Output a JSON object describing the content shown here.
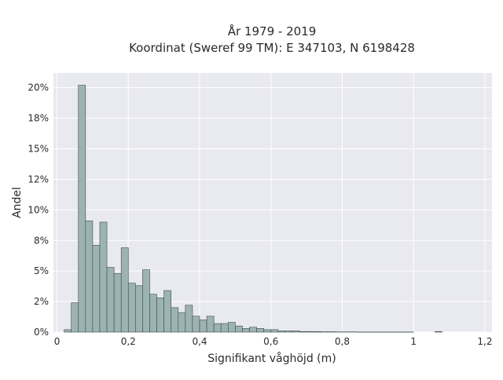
{
  "chart_data": {
    "type": "bar",
    "title_line1": "År 1979 - 2019",
    "title_line2": "Koordinat (Sweref 99 TM): E 347103, N 6198428",
    "xlabel": "Signifikant våghöjd (m)",
    "ylabel": "Andel",
    "xlim": [
      -0.01,
      1.22
    ],
    "ylim": [
      0,
      21.2
    ],
    "x_ticks": [
      {
        "value": 0,
        "label": "0"
      },
      {
        "value": 0.2,
        "label": "0,2"
      },
      {
        "value": 0.4,
        "label": "0,4"
      },
      {
        "value": 0.6,
        "label": "0,6"
      },
      {
        "value": 0.8,
        "label": "0,8"
      },
      {
        "value": 1.0,
        "label": "1"
      },
      {
        "value": 1.2,
        "label": "1,2"
      }
    ],
    "y_ticks": [
      {
        "value": 0,
        "label": "0%"
      },
      {
        "value": 2.5,
        "label": "2%"
      },
      {
        "value": 5,
        "label": "5%"
      },
      {
        "value": 7.5,
        "label": "8%"
      },
      {
        "value": 10,
        "label": "10%"
      },
      {
        "value": 12.5,
        "label": "12%"
      },
      {
        "value": 15,
        "label": "15%"
      },
      {
        "value": 17.5,
        "label": "18%"
      },
      {
        "value": 20,
        "label": "20%"
      }
    ],
    "bin_width": 0.02,
    "bin_starts": [
      0.02,
      0.04,
      0.06,
      0.08,
      0.1,
      0.12,
      0.14,
      0.16,
      0.18,
      0.2,
      0.22,
      0.24,
      0.26,
      0.28,
      0.3,
      0.32,
      0.34,
      0.36,
      0.38,
      0.4,
      0.42,
      0.44,
      0.46,
      0.48,
      0.5,
      0.52,
      0.54,
      0.56,
      0.58,
      0.6,
      0.62,
      0.64,
      0.66,
      0.68,
      0.7,
      0.72,
      0.74,
      0.76,
      0.78,
      0.8,
      0.82,
      0.84,
      0.86,
      0.88,
      0.9,
      0.92,
      0.94,
      0.96,
      0.98,
      1.0,
      1.02,
      1.04,
      1.06,
      1.08,
      1.1,
      1.12,
      1.14,
      1.16,
      1.18
    ],
    "values": [
      0.2,
      2.4,
      20.2,
      9.1,
      7.1,
      9.0,
      5.3,
      4.8,
      6.9,
      4.0,
      3.8,
      5.1,
      3.1,
      2.8,
      3.4,
      2.0,
      1.6,
      2.2,
      1.3,
      1.0,
      1.3,
      0.7,
      0.7,
      0.8,
      0.5,
      0.3,
      0.4,
      0.3,
      0.2,
      0.2,
      0.1,
      0.1,
      0.1,
      0.05,
      0.05,
      0.04,
      0.03,
      0.03,
      0.02,
      0.02,
      0.02,
      0.01,
      0.01,
      0.01,
      0.01,
      0.01,
      0.01,
      0.01,
      0.01,
      0.0,
      0.0,
      0.0,
      0.05,
      0.0,
      0.0,
      0.0,
      0.0,
      0.0,
      0.0
    ],
    "bar_color": "#9db3b3",
    "bar_edge": "#3e4a4a",
    "plot_bg": "#e9e9f0",
    "grid_color": "#ffffff",
    "grid": true
  }
}
